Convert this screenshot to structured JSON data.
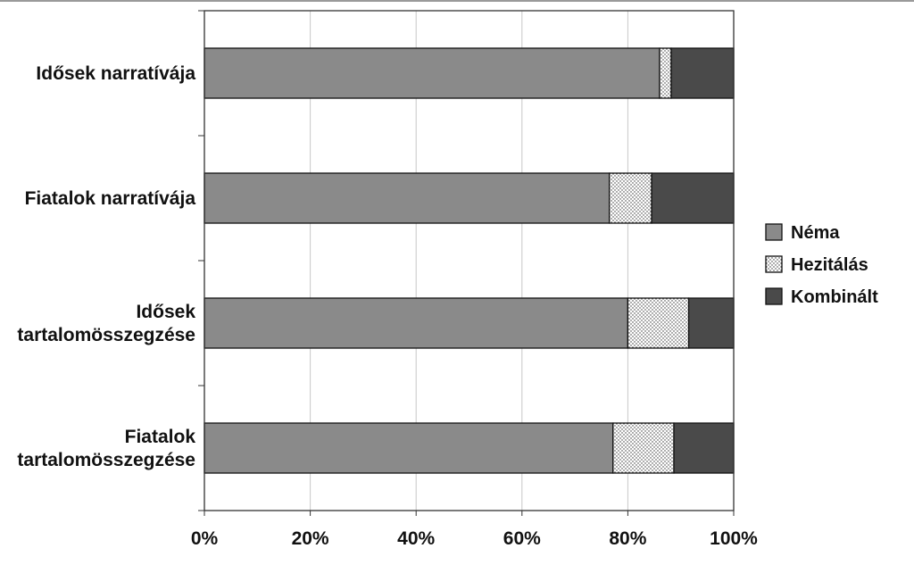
{
  "chart_data": {
    "type": "bar",
    "orientation": "horizontal",
    "stacked": true,
    "percent_stacked": true,
    "categories": [
      [
        "Idősek narratívája"
      ],
      [
        "Fiatalok narratívája"
      ],
      [
        "Idősek",
        "tartalomösszegzése"
      ],
      [
        "Fiatalok",
        "tartalomösszegzése"
      ]
    ],
    "series": [
      {
        "name": "Néma",
        "values": [
          86,
          76.5,
          80,
          77.2
        ],
        "color": "#8a8a8a",
        "pattern": "solid"
      },
      {
        "name": "Hezitálás",
        "values": [
          2.2,
          8,
          11.5,
          11.5
        ],
        "color": "#ffffff",
        "pattern": "dotted"
      },
      {
        "name": "Kombinált",
        "values": [
          11.8,
          15.5,
          8.5,
          11.3
        ],
        "color": "#4a4a4a",
        "pattern": "solid"
      }
    ],
    "x_ticks": [
      "0%",
      "20%",
      "40%",
      "60%",
      "80%",
      "100%"
    ],
    "xlim": [
      0,
      100
    ],
    "grid": true,
    "legend_position": "right",
    "title": "",
    "xlabel": "",
    "ylabel": ""
  }
}
